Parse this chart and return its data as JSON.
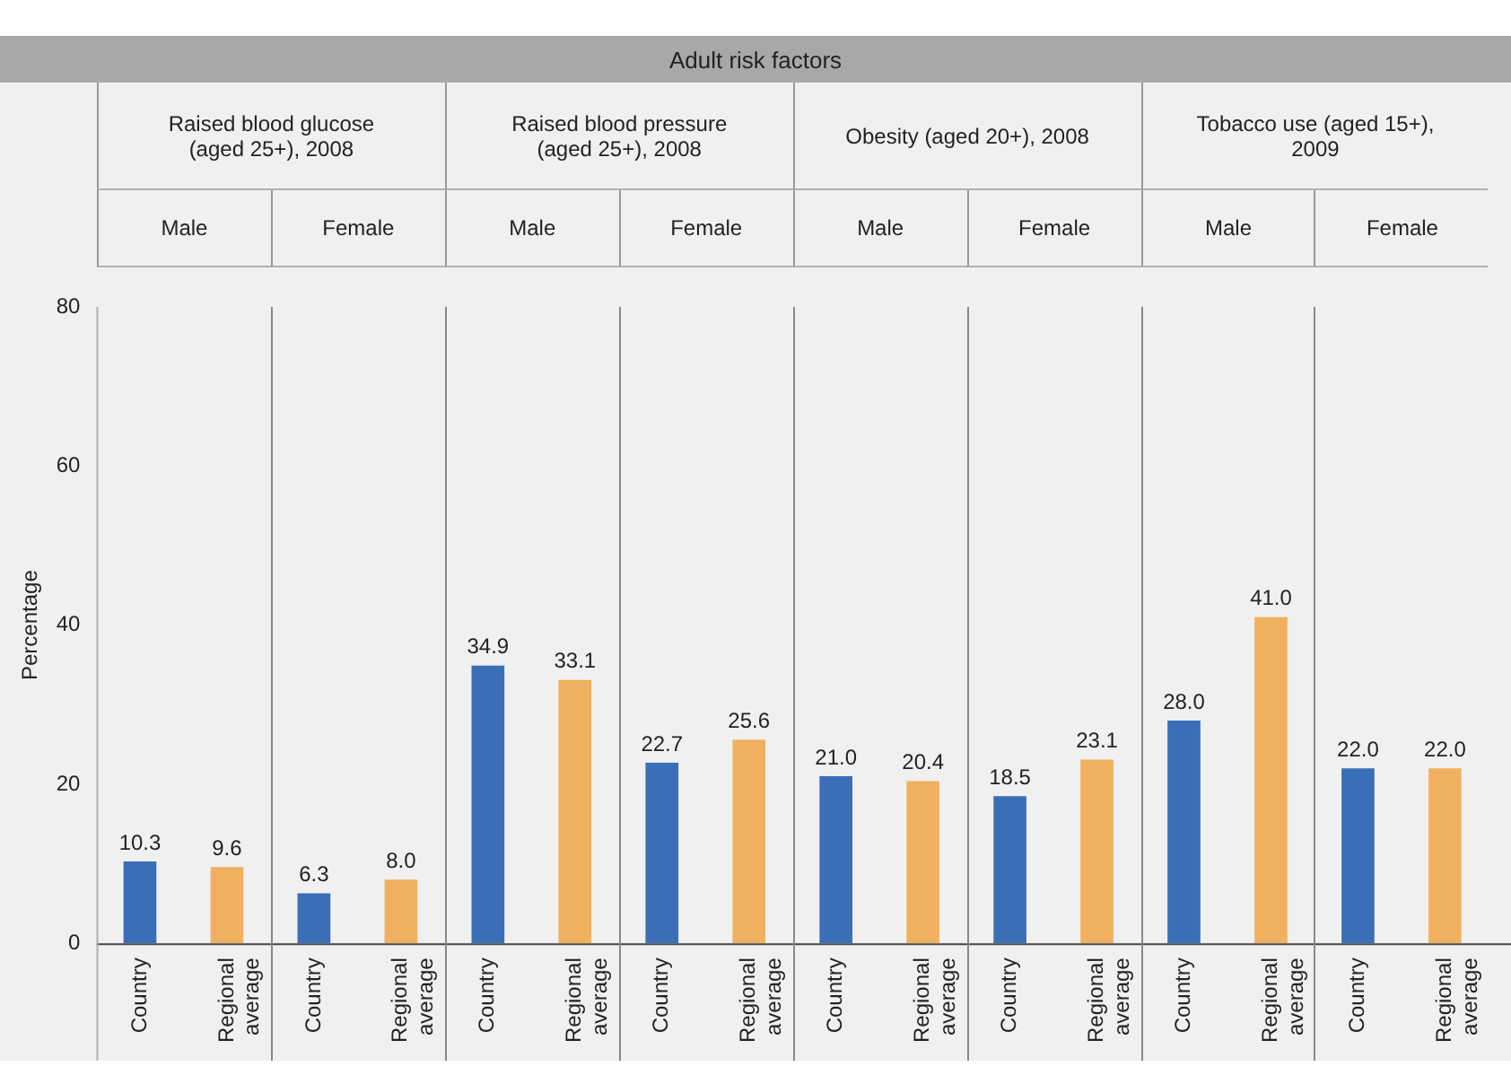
{
  "chart_data": {
    "type": "bar",
    "title": "Adult risk factors",
    "ylabel": "Percentage",
    "categories": [
      "Country",
      "Regional average",
      "Country",
      "Regional average",
      "Country",
      "Regional average",
      "Country",
      "Regional average",
      "Country",
      "Regional average",
      "Country",
      "Regional average",
      "Country",
      "Regional average",
      "Country",
      "Regional average"
    ],
    "values": [
      10.3,
      9.6,
      6.3,
      8.0,
      34.9,
      33.1,
      22.7,
      25.6,
      21.0,
      20.4,
      18.5,
      23.1,
      28.0,
      41.0,
      22.0,
      22.0
    ],
    "value_labels": [
      "10.3",
      "9.6",
      "6.3",
      "8.0",
      "34.9",
      "33.1",
      "22.7",
      "25.6",
      "21.0",
      "20.4",
      "18.5",
      "23.1",
      "28.0",
      "41.0",
      "22.0",
      "22.0"
    ],
    "colors": [
      "#3a6fb8",
      "#f0b060",
      "#3a6fb8",
      "#f0b060",
      "#3a6fb8",
      "#f0b060",
      "#3a6fb8",
      "#f0b060",
      "#3a6fb8",
      "#f0b060",
      "#3a6fb8",
      "#f0b060",
      "#3a6fb8",
      "#f0b060",
      "#3a6fb8",
      "#f0b060"
    ],
    "ylim": [
      0,
      80
    ],
    "yticks": [
      0,
      20,
      40,
      60,
      80
    ],
    "grid": false,
    "legend": false,
    "annotations": [
      "Raised blood glucose (aged 25+), 2008",
      "Raised blood pressure (aged 25+), 2008",
      "Obesity (aged 20+), 2008",
      "Tobacco use (aged 15+), 2009",
      "Male",
      "Female",
      "Male",
      "Female",
      "Male",
      "Female",
      "Male",
      "Female"
    ]
  }
}
